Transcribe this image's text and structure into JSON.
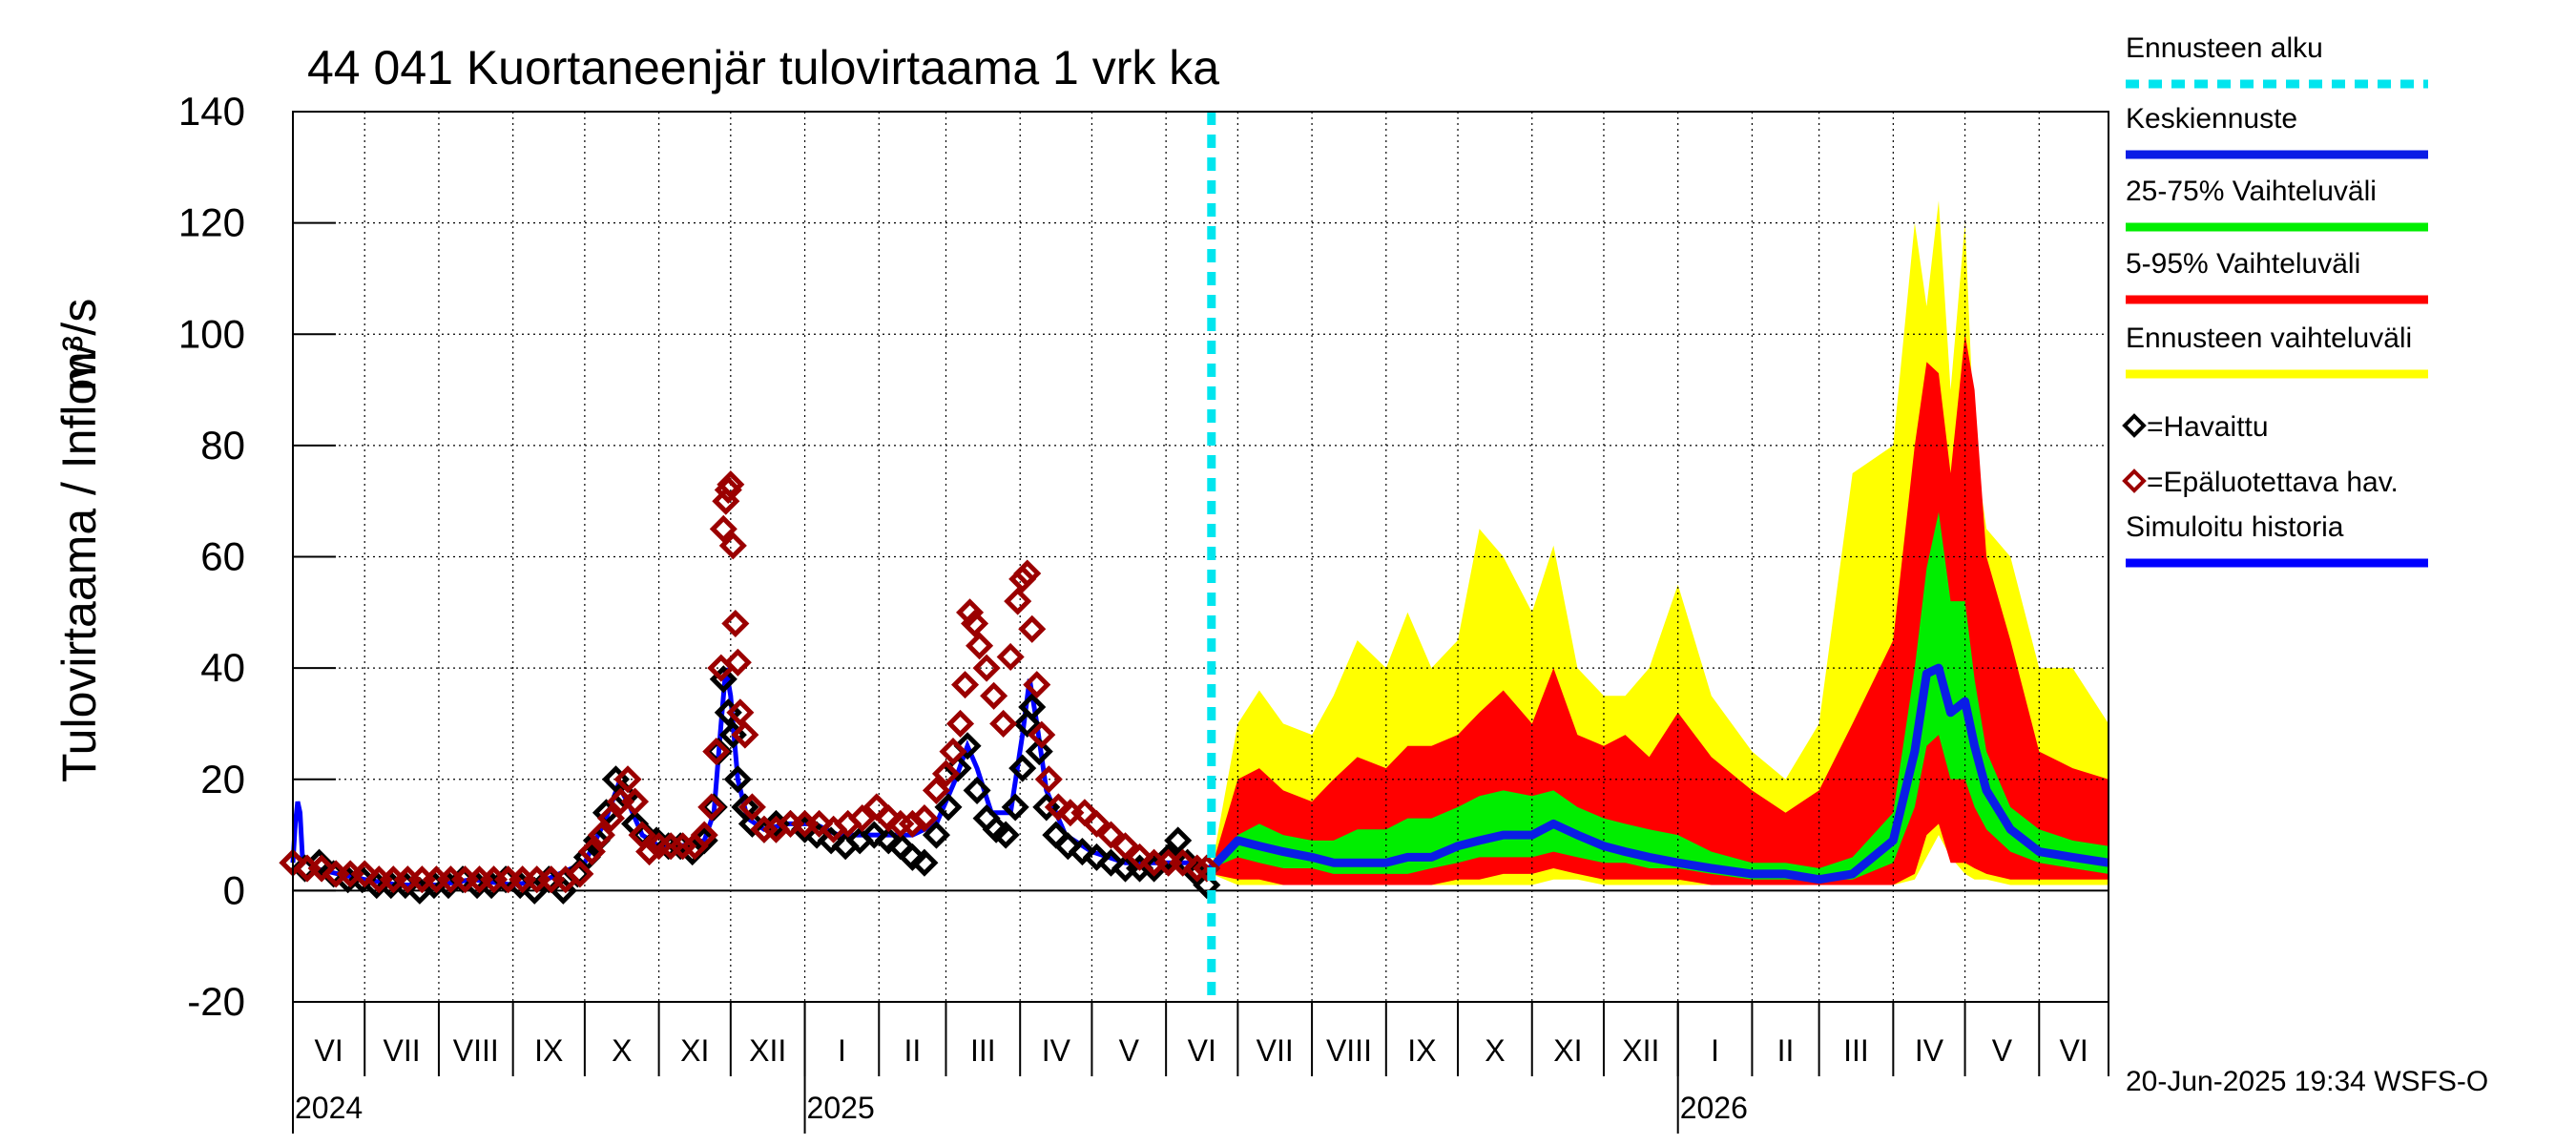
{
  "chart_data": {
    "type": "area",
    "title": "44 041 Kuortaneenjär tulovirtaama 1 vrk ka",
    "ylabel": "Tulovirtaama / Inflow",
    "yunit": "m³/s",
    "ylim": [
      -20,
      140
    ],
    "yticks": [
      -20,
      0,
      20,
      40,
      60,
      80,
      100,
      120,
      140
    ],
    "grid": true,
    "x_start": "2024-06-01",
    "x_end": "2026-06-30",
    "forecast_start": "2025-06-20",
    "months": [
      {
        "label": "VI",
        "start": "2024-06-01"
      },
      {
        "label": "VII",
        "start": "2024-07-01"
      },
      {
        "label": "VIII",
        "start": "2024-08-01"
      },
      {
        "label": "IX",
        "start": "2024-09-01"
      },
      {
        "label": "X",
        "start": "2024-10-01"
      },
      {
        "label": "XI",
        "start": "2024-11-01"
      },
      {
        "label": "XII",
        "start": "2024-12-01"
      },
      {
        "label": "I",
        "start": "2025-01-01"
      },
      {
        "label": "II",
        "start": "2025-02-01"
      },
      {
        "label": "III",
        "start": "2025-03-01"
      },
      {
        "label": "IV",
        "start": "2025-04-01"
      },
      {
        "label": "V",
        "start": "2025-05-01"
      },
      {
        "label": "VI",
        "start": "2025-06-01"
      },
      {
        "label": "VII",
        "start": "2025-07-01"
      },
      {
        "label": "VIII",
        "start": "2025-08-01"
      },
      {
        "label": "IX",
        "start": "2025-09-01"
      },
      {
        "label": "X",
        "start": "2025-10-01"
      },
      {
        "label": "XI",
        "start": "2025-11-01"
      },
      {
        "label": "XII",
        "start": "2025-12-01"
      },
      {
        "label": "I",
        "start": "2026-01-01"
      },
      {
        "label": "II",
        "start": "2026-02-01"
      },
      {
        "label": "III",
        "start": "2026-03-01"
      },
      {
        "label": "IV",
        "start": "2026-04-01"
      },
      {
        "label": "V",
        "start": "2026-05-01"
      },
      {
        "label": "VI",
        "start": "2026-06-01"
      }
    ],
    "years": [
      {
        "label": "2024",
        "at": "2024-06-01"
      },
      {
        "label": "2025",
        "at": "2025-01-01"
      },
      {
        "label": "2026",
        "at": "2026-01-01"
      }
    ],
    "observed": [
      [
        "2024-06-01",
        5
      ],
      [
        "2024-06-06",
        4
      ],
      [
        "2024-06-12",
        5
      ],
      [
        "2024-06-18",
        3
      ],
      [
        "2024-06-24",
        2
      ],
      [
        "2024-06-30",
        2
      ],
      [
        "2024-07-06",
        1
      ],
      [
        "2024-07-12",
        1
      ],
      [
        "2024-07-18",
        1
      ],
      [
        "2024-07-24",
        0
      ],
      [
        "2024-07-30",
        1
      ],
      [
        "2024-08-05",
        1
      ],
      [
        "2024-08-11",
        2
      ],
      [
        "2024-08-17",
        1
      ],
      [
        "2024-08-23",
        1
      ],
      [
        "2024-08-29",
        2
      ],
      [
        "2024-09-04",
        1
      ],
      [
        "2024-09-10",
        0
      ],
      [
        "2024-09-16",
        2
      ],
      [
        "2024-09-22",
        0
      ],
      [
        "2024-09-28",
        3
      ],
      [
        "2024-10-02",
        6
      ],
      [
        "2024-10-06",
        9
      ],
      [
        "2024-10-10",
        14
      ],
      [
        "2024-10-14",
        20
      ],
      [
        "2024-10-18",
        17
      ],
      [
        "2024-10-22",
        12
      ],
      [
        "2024-10-26",
        10
      ],
      [
        "2024-10-31",
        9
      ],
      [
        "2024-11-05",
        8
      ],
      [
        "2024-11-10",
        8
      ],
      [
        "2024-11-15",
        7
      ],
      [
        "2024-11-20",
        9
      ],
      [
        "2024-11-24",
        15
      ],
      [
        "2024-11-26",
        25
      ],
      [
        "2024-11-28",
        38
      ],
      [
        "2024-11-30",
        32
      ],
      [
        "2024-12-02",
        28
      ],
      [
        "2024-12-04",
        20
      ],
      [
        "2024-12-07",
        15
      ],
      [
        "2024-12-10",
        12
      ],
      [
        "2024-12-15",
        11
      ],
      [
        "2024-12-20",
        12
      ],
      [
        "2024-12-26",
        12
      ],
      [
        "2025-01-01",
        11
      ],
      [
        "2025-01-06",
        10
      ],
      [
        "2025-01-12",
        9
      ],
      [
        "2025-01-18",
        8
      ],
      [
        "2025-01-24",
        9
      ],
      [
        "2025-01-30",
        10
      ],
      [
        "2025-02-05",
        9
      ],
      [
        "2025-02-10",
        8
      ],
      [
        "2025-02-15",
        6
      ],
      [
        "2025-02-20",
        5
      ],
      [
        "2025-02-25",
        10
      ],
      [
        "2025-03-02",
        15
      ],
      [
        "2025-03-06",
        22
      ],
      [
        "2025-03-10",
        26
      ],
      [
        "2025-03-14",
        18
      ],
      [
        "2025-03-18",
        13
      ],
      [
        "2025-03-22",
        11
      ],
      [
        "2025-03-26",
        10
      ],
      [
        "2025-03-30",
        15
      ],
      [
        "2025-04-02",
        22
      ],
      [
        "2025-04-04",
        30
      ],
      [
        "2025-04-06",
        33
      ],
      [
        "2025-04-09",
        25
      ],
      [
        "2025-04-12",
        15
      ],
      [
        "2025-04-16",
        10
      ],
      [
        "2025-04-21",
        8
      ],
      [
        "2025-04-27",
        7
      ],
      [
        "2025-05-03",
        6
      ],
      [
        "2025-05-09",
        5
      ],
      [
        "2025-05-15",
        4
      ],
      [
        "2025-05-21",
        4
      ],
      [
        "2025-05-27",
        4
      ],
      [
        "2025-06-02",
        6
      ],
      [
        "2025-06-06",
        9
      ],
      [
        "2025-06-10",
        5
      ],
      [
        "2025-06-14",
        3
      ],
      [
        "2025-06-18",
        1
      ]
    ],
    "unreliable": [
      [
        "2024-06-01",
        5
      ],
      [
        "2024-06-07",
        4
      ],
      [
        "2024-06-13",
        4
      ],
      [
        "2024-06-19",
        3
      ],
      [
        "2024-06-25",
        3
      ],
      [
        "2024-07-01",
        3
      ],
      [
        "2024-07-07",
        2
      ],
      [
        "2024-07-13",
        2
      ],
      [
        "2024-07-19",
        2
      ],
      [
        "2024-07-25",
        2
      ],
      [
        "2024-07-31",
        2
      ],
      [
        "2024-08-06",
        2
      ],
      [
        "2024-08-12",
        2
      ],
      [
        "2024-08-18",
        2
      ],
      [
        "2024-08-24",
        2
      ],
      [
        "2024-08-30",
        2
      ],
      [
        "2024-09-05",
        2
      ],
      [
        "2024-09-11",
        2
      ],
      [
        "2024-09-17",
        2
      ],
      [
        "2024-09-23",
        2
      ],
      [
        "2024-09-29",
        3
      ],
      [
        "2024-10-04",
        7
      ],
      [
        "2024-10-08",
        10
      ],
      [
        "2024-10-12",
        13
      ],
      [
        "2024-10-16",
        16
      ],
      [
        "2024-10-19",
        20
      ],
      [
        "2024-10-22",
        16
      ],
      [
        "2024-10-25",
        10
      ],
      [
        "2024-10-28",
        7
      ],
      [
        "2024-11-01",
        8
      ],
      [
        "2024-11-06",
        8
      ],
      [
        "2024-11-11",
        8
      ],
      [
        "2024-11-16",
        8
      ],
      [
        "2024-11-20",
        10
      ],
      [
        "2024-11-23",
        15
      ],
      [
        "2024-11-25",
        25
      ],
      [
        "2024-11-27",
        40
      ],
      [
        "2024-11-28",
        65
      ],
      [
        "2024-11-29",
        70
      ],
      [
        "2024-11-30",
        72
      ],
      [
        "2024-12-01",
        73
      ],
      [
        "2024-12-02",
        62
      ],
      [
        "2024-12-03",
        48
      ],
      [
        "2024-12-04",
        41
      ],
      [
        "2024-12-05",
        32
      ],
      [
        "2024-12-07",
        28
      ],
      [
        "2024-12-10",
        15
      ],
      [
        "2024-12-15",
        11
      ],
      [
        "2024-12-20",
        11
      ],
      [
        "2024-12-26",
        12
      ],
      [
        "2025-01-01",
        12
      ],
      [
        "2025-01-07",
        12
      ],
      [
        "2025-01-13",
        11
      ],
      [
        "2025-01-19",
        12
      ],
      [
        "2025-01-25",
        13
      ],
      [
        "2025-01-31",
        15
      ],
      [
        "2025-02-05",
        13
      ],
      [
        "2025-02-10",
        12
      ],
      [
        "2025-02-15",
        12
      ],
      [
        "2025-02-20",
        13
      ],
      [
        "2025-02-25",
        18
      ],
      [
        "2025-03-01",
        21
      ],
      [
        "2025-03-04",
        25
      ],
      [
        "2025-03-07",
        30
      ],
      [
        "2025-03-09",
        37
      ],
      [
        "2025-03-11",
        50
      ],
      [
        "2025-03-13",
        48
      ],
      [
        "2025-03-15",
        44
      ],
      [
        "2025-03-18",
        40
      ],
      [
        "2025-03-21",
        35
      ],
      [
        "2025-03-25",
        30
      ],
      [
        "2025-03-28",
        42
      ],
      [
        "2025-03-31",
        52
      ],
      [
        "2025-04-02",
        56
      ],
      [
        "2025-04-04",
        57
      ],
      [
        "2025-04-06",
        47
      ],
      [
        "2025-04-08",
        37
      ],
      [
        "2025-04-10",
        28
      ],
      [
        "2025-04-13",
        20
      ],
      [
        "2025-04-17",
        15
      ],
      [
        "2025-04-22",
        14
      ],
      [
        "2025-04-28",
        14
      ],
      [
        "2025-05-03",
        12
      ],
      [
        "2025-05-09",
        10
      ],
      [
        "2025-05-15",
        8
      ],
      [
        "2025-05-21",
        6
      ],
      [
        "2025-05-27",
        5
      ],
      [
        "2025-06-02",
        5
      ],
      [
        "2025-06-08",
        5
      ],
      [
        "2025-06-14",
        4
      ],
      [
        "2025-06-18",
        4
      ]
    ],
    "simulated": [
      [
        "2024-06-01",
        5
      ],
      [
        "2024-06-02",
        12
      ],
      [
        "2024-06-03",
        16
      ],
      [
        "2024-06-04",
        14
      ],
      [
        "2024-06-05",
        6
      ],
      [
        "2024-06-10",
        4
      ],
      [
        "2024-06-20",
        3
      ],
      [
        "2024-07-01",
        2
      ],
      [
        "2024-07-15",
        1
      ],
      [
        "2024-08-01",
        1
      ],
      [
        "2024-08-15",
        2
      ],
      [
        "2024-09-01",
        1
      ],
      [
        "2024-09-15",
        2
      ],
      [
        "2024-10-01",
        5
      ],
      [
        "2024-10-10",
        13
      ],
      [
        "2024-10-15",
        19
      ],
      [
        "2024-10-20",
        15
      ],
      [
        "2024-10-25",
        10
      ],
      [
        "2024-11-01",
        8
      ],
      [
        "2024-11-10",
        8
      ],
      [
        "2024-11-20",
        9
      ],
      [
        "2024-11-24",
        14
      ],
      [
        "2024-11-27",
        30
      ],
      [
        "2024-11-29",
        40
      ],
      [
        "2024-12-01",
        35
      ],
      [
        "2024-12-04",
        20
      ],
      [
        "2024-12-08",
        13
      ],
      [
        "2024-12-15",
        11
      ],
      [
        "2024-12-25",
        12
      ],
      [
        "2025-01-05",
        12
      ],
      [
        "2025-01-15",
        10
      ],
      [
        "2025-01-25",
        10
      ],
      [
        "2025-02-05",
        10
      ],
      [
        "2025-02-15",
        10
      ],
      [
        "2025-02-25",
        12
      ],
      [
        "2025-03-05",
        20
      ],
      [
        "2025-03-10",
        26
      ],
      [
        "2025-03-14",
        22
      ],
      [
        "2025-03-20",
        14
      ],
      [
        "2025-03-28",
        14
      ],
      [
        "2025-04-02",
        28
      ],
      [
        "2025-04-05",
        38
      ],
      [
        "2025-04-08",
        30
      ],
      [
        "2025-04-12",
        18
      ],
      [
        "2025-04-20",
        10
      ],
      [
        "2025-05-01",
        7
      ],
      [
        "2025-05-15",
        5
      ],
      [
        "2025-06-01",
        5
      ],
      [
        "2025-06-10",
        5
      ],
      [
        "2025-06-20",
        4
      ]
    ],
    "forecast": {
      "x": [
        "2025-06-20",
        "2025-07-01",
        "2025-07-10",
        "2025-07-20",
        "2025-08-01",
        "2025-08-10",
        "2025-08-20",
        "2025-09-01",
        "2025-09-10",
        "2025-09-20",
        "2025-10-01",
        "2025-10-10",
        "2025-10-20",
        "2025-11-01",
        "2025-11-10",
        "2025-11-20",
        "2025-12-01",
        "2025-12-10",
        "2025-12-20",
        "2026-01-01",
        "2026-01-15",
        "2026-02-01",
        "2026-02-15",
        "2026-03-01",
        "2026-03-15",
        "2026-04-01",
        "2026-04-10",
        "2026-04-15",
        "2026-04-20",
        "2026-04-25",
        "2026-05-01",
        "2026-05-05",
        "2026-05-10",
        "2026-05-20",
        "2026-06-01",
        "2026-06-15",
        "2026-06-30"
      ],
      "range_max": [
        4,
        30,
        36,
        30,
        28,
        35,
        45,
        40,
        50,
        40,
        45,
        65,
        60,
        50,
        62,
        40,
        35,
        35,
        40,
        55,
        35,
        25,
        20,
        30,
        75,
        80,
        120,
        105,
        124,
        90,
        120,
        80,
        65,
        60,
        40,
        40,
        30
      ],
      "p95": [
        4,
        20,
        22,
        18,
        16,
        20,
        24,
        22,
        26,
        26,
        28,
        32,
        36,
        30,
        40,
        28,
        26,
        28,
        24,
        32,
        24,
        18,
        14,
        18,
        30,
        45,
        80,
        95,
        93,
        75,
        100,
        90,
        60,
        45,
        25,
        22,
        20
      ],
      "p75": [
        4,
        10,
        12,
        10,
        9,
        9,
        11,
        11,
        13,
        13,
        15,
        17,
        18,
        17,
        18,
        15,
        13,
        12,
        11,
        10,
        7,
        5,
        5,
        4,
        6,
        14,
        40,
        58,
        68,
        52,
        52,
        38,
        25,
        15,
        11,
        9,
        8
      ],
      "median": [
        4,
        9,
        8,
        7,
        6,
        5,
        5,
        5,
        6,
        6,
        8,
        9,
        10,
        10,
        12,
        10,
        8,
        7,
        6,
        5,
        4,
        3,
        3,
        2,
        3,
        9,
        25,
        39,
        40,
        32,
        34,
        26,
        18,
        11,
        7,
        6,
        5
      ],
      "p25": [
        4,
        6,
        5,
        4,
        4,
        3,
        3,
        3,
        3,
        4,
        5,
        6,
        6,
        6,
        7,
        6,
        5,
        5,
        4,
        4,
        3,
        2,
        2,
        2,
        2,
        5,
        15,
        26,
        28,
        20,
        20,
        15,
        11,
        7,
        5,
        4,
        3
      ],
      "p05": [
        3,
        2,
        2,
        1,
        1,
        1,
        1,
        1,
        1,
        1,
        2,
        2,
        3,
        3,
        4,
        3,
        2,
        2,
        2,
        2,
        1,
        1,
        1,
        1,
        1,
        1,
        3,
        10,
        12,
        5,
        5,
        4,
        3,
        2,
        2,
        2,
        2
      ],
      "range_min": [
        3,
        1,
        1,
        1,
        1,
        1,
        1,
        1,
        1,
        1,
        1,
        1,
        1,
        1,
        2,
        2,
        1,
        1,
        1,
        1,
        1,
        1,
        1,
        1,
        1,
        1,
        2,
        6,
        10,
        6,
        3,
        2,
        2,
        1,
        1,
        1,
        1
      ]
    },
    "legend": [
      {
        "label": "Ennusteen alku",
        "kind": "dash",
        "color": "#00e5ee"
      },
      {
        "label": "Keskiennuste",
        "kind": "line",
        "color": "#0a1de6"
      },
      {
        "label": "25-75% Vaihteluväli",
        "kind": "line",
        "color": "#00ee00"
      },
      {
        "label": "5-95% Vaihteluväli",
        "kind": "line",
        "color": "#ff0000"
      },
      {
        "label": "Ennusteen vaihteluväli",
        "kind": "line",
        "color": "#ffff00"
      },
      {
        "label": "=Havaittu",
        "kind": "diamond",
        "color": "#000000"
      },
      {
        "label": "=Epäluotettava hav.",
        "kind": "diamond",
        "color": "#9b0000"
      },
      {
        "label": "Simuloitu historia",
        "kind": "line",
        "color": "#0000ff"
      }
    ],
    "colors": {
      "range": "#ffff00",
      "p5_95": "#ff0000",
      "p25_75": "#00ee00",
      "median": "#0a1de6",
      "simulated": "#0000ff",
      "observed": "#000000",
      "unreliable": "#9b0000",
      "forecast_start": "#00e5ee",
      "grid": "#000000",
      "zero_line": "#000000"
    }
  },
  "footer": {
    "timestamp": "20-Jun-2025 19:34 WSFS-O"
  }
}
